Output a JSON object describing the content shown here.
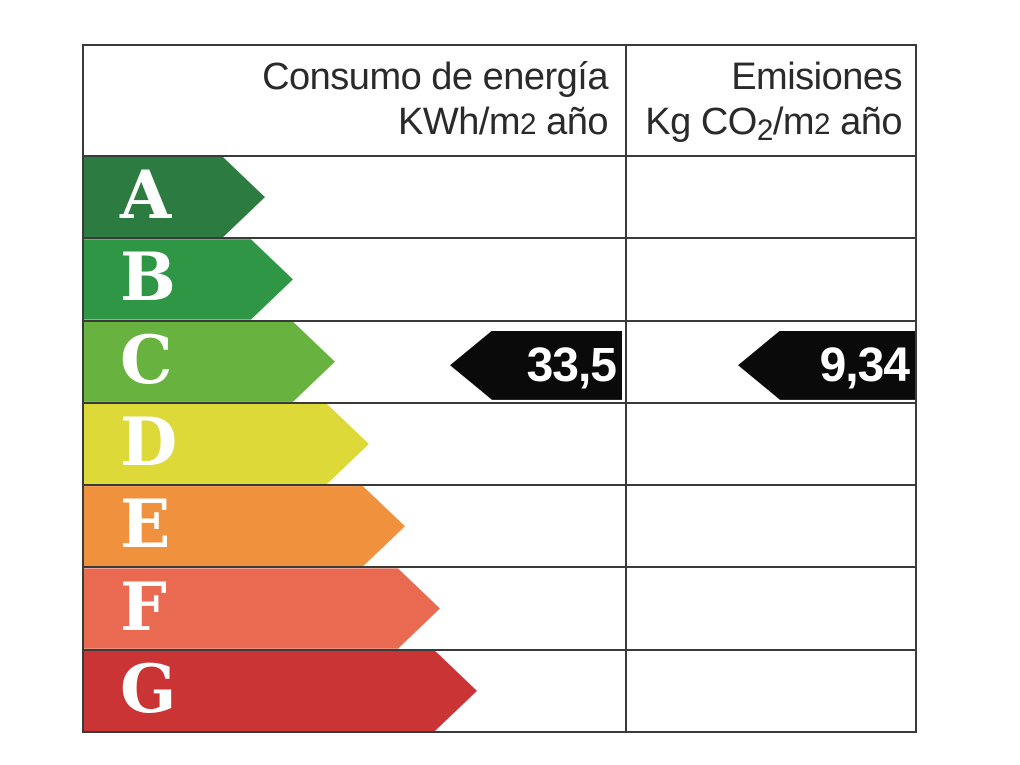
{
  "header": {
    "energy_title": "Consumo de energía",
    "energy_unit_prefix": "KWh/m",
    "energy_unit_exp": "2",
    "energy_unit_suffix": " año",
    "emissions_title": "Emisiones",
    "emissions_unit_prefix": "Kg CO",
    "emissions_unit_sub": "2",
    "emissions_unit_mid": "/m",
    "emissions_unit_exp": "2",
    "emissions_unit_suffix": " año"
  },
  "ratings": [
    {
      "letter": "A",
      "color": "#2c7b40"
    },
    {
      "letter": "B",
      "color": "#2f9646"
    },
    {
      "letter": "C",
      "color": "#68b33f"
    },
    {
      "letter": "D",
      "color": "#dcd938"
    },
    {
      "letter": "E",
      "color": "#f0913e"
    },
    {
      "letter": "F",
      "color": "#e96a51"
    },
    {
      "letter": "G",
      "color": "#ca3434"
    }
  ],
  "values": {
    "energy": "33,5",
    "emissions": "9,34",
    "rated_letter": "C",
    "marker_color": "#0a0a0a",
    "marker_text_color": "#ffffff"
  },
  "chart_data": {
    "type": "bar",
    "title": "",
    "categories": [
      "A",
      "B",
      "C",
      "D",
      "E",
      "F",
      "G"
    ],
    "bar_colors": [
      "#2c7b40",
      "#2f9646",
      "#68b33f",
      "#dcd938",
      "#f0913e",
      "#e96a51",
      "#ca3434"
    ],
    "columns": [
      "Consumo de energía KWh/m2 año",
      "Emisiones Kg CO2/m2 año"
    ],
    "current_rating": "C",
    "values": {
      "consumo_kwh_m2_ano": 33.5,
      "emisiones_kg_co2_m2_ano": 9.34
    },
    "grid": false,
    "legend_position": "none"
  }
}
